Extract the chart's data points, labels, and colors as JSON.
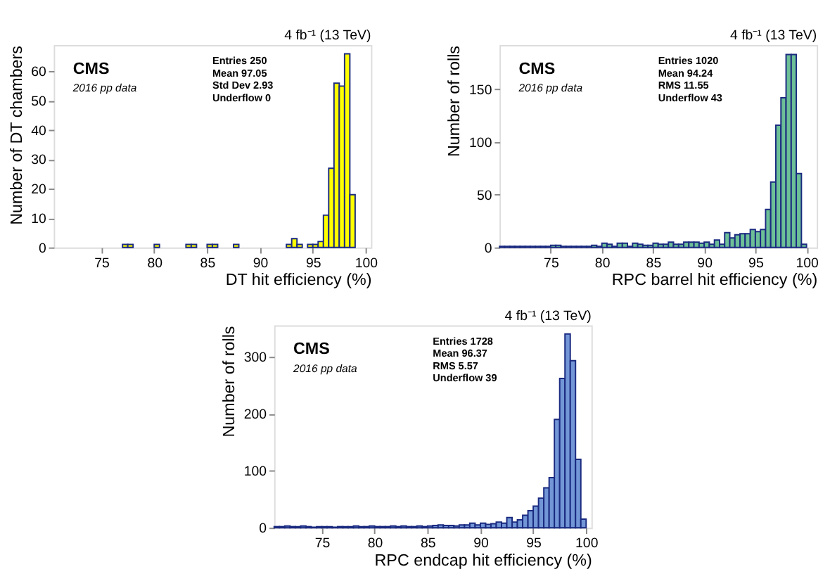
{
  "chart_data": [
    {
      "type": "histogram",
      "xlabel": "DT hit efficiency (%)",
      "ylabel": "Number of DT chambers",
      "color": "#ffff00",
      "grid": false,
      "xlim": [
        70.5,
        100.5
      ],
      "ylim": [
        0,
        69
      ],
      "xticks": [
        75,
        80,
        85,
        90,
        95,
        100
      ],
      "yticks": [
        0,
        10,
        20,
        30,
        40,
        50,
        60
      ],
      "bins": [
        70.5,
        71,
        71.5,
        72,
        72.5,
        73,
        73.5,
        74,
        74.5,
        75,
        75.5,
        76,
        76.5,
        77,
        77.5,
        78,
        78.5,
        79,
        79.5,
        80,
        80.5,
        81,
        81.5,
        82,
        82.5,
        83,
        83.5,
        84,
        84.5,
        85,
        85.5,
        86,
        86.5,
        87,
        87.5,
        88,
        88.5,
        89,
        89.5,
        90,
        90.5,
        91,
        91.5,
        92,
        92.5,
        93,
        93.5,
        94,
        94.5,
        95,
        95.5,
        96,
        96.5,
        97,
        97.5,
        98,
        98.5,
        99,
        99.5,
        100
      ],
      "values": [
        0,
        0,
        0,
        0,
        0,
        0,
        0,
        0,
        0,
        0,
        0,
        0,
        0,
        1,
        1,
        0,
        0,
        0,
        0,
        1,
        0,
        0,
        0,
        0,
        0,
        1,
        1,
        0,
        0,
        1,
        1,
        0,
        0,
        0,
        1,
        0,
        0,
        0,
        0,
        0,
        0,
        0,
        0,
        0,
        1,
        3,
        1,
        0,
        1,
        1,
        2,
        11,
        27,
        56,
        55,
        66,
        18,
        0,
        0
      ],
      "annotations": [
        "4 fb⁻¹ (13 TeV)",
        "CMS",
        "2016 pp data",
        "Entries 250",
        "Mean 97.05",
        "Std Dev 2.93",
        "Underflow 0"
      ]
    },
    {
      "type": "histogram",
      "xlabel": "RPC barrel hit efficiency (%)",
      "ylabel": "Number of rolls",
      "color": "#6dbf97",
      "grid": false,
      "xlim": [
        70,
        101
      ],
      "ylim": [
        0,
        192
      ],
      "xticks": [
        75,
        80,
        85,
        90,
        95,
        100
      ],
      "yticks": [
        0,
        50,
        100,
        150
      ],
      "bins": [
        70,
        70.5,
        71,
        71.5,
        72,
        72.5,
        73,
        73.5,
        74,
        74.5,
        75,
        75.5,
        76,
        76.5,
        77,
        77.5,
        78,
        78.5,
        79,
        79.5,
        80,
        80.5,
        81,
        81.5,
        82,
        82.5,
        83,
        83.5,
        84,
        84.5,
        85,
        85.5,
        86,
        86.5,
        87,
        87.5,
        88,
        88.5,
        89,
        89.5,
        90,
        90.5,
        91,
        91.5,
        92,
        92.5,
        93,
        93.5,
        94,
        94.5,
        95,
        95.5,
        96,
        96.5,
        97,
        97.5,
        98,
        98.5,
        99,
        99.5,
        100
      ],
      "values": [
        1,
        1,
        1,
        1,
        1,
        1,
        1,
        1,
        1,
        1,
        2,
        2,
        1,
        1,
        1,
        1,
        1,
        1,
        2,
        1,
        4,
        3,
        1,
        4,
        4,
        1,
        4,
        3,
        2,
        2,
        4,
        3,
        3,
        5,
        3,
        3,
        5,
        5,
        5,
        4,
        5,
        3,
        7,
        3,
        14,
        9,
        12,
        13,
        13,
        17,
        15,
        17,
        36,
        62,
        116,
        142,
        183,
        183,
        70,
        3
      ],
      "annotations": [
        "4 fb⁻¹ (13 TeV)",
        "CMS",
        "2016 pp data",
        "Entries 1020",
        "Mean 94.24",
        "RMS 11.55",
        "Underflow 43"
      ]
    },
    {
      "type": "histogram",
      "xlabel": "RPC endcap hit efficiency (%)",
      "ylabel": "Number of rolls",
      "color": "#7396d6",
      "grid": false,
      "xlim": [
        70.5,
        100.5
      ],
      "ylim": [
        0,
        355
      ],
      "xticks": [
        75,
        80,
        85,
        90,
        95,
        100
      ],
      "yticks": [
        0,
        100,
        200,
        300
      ],
      "bins": [
        70.5,
        71,
        71.5,
        72,
        72.5,
        73,
        73.5,
        74,
        74.5,
        75,
        75.5,
        76,
        76.5,
        77,
        77.5,
        78,
        78.5,
        79,
        79.5,
        80,
        80.5,
        81,
        81.5,
        82,
        82.5,
        83,
        83.5,
        84,
        84.5,
        85,
        85.5,
        86,
        86.5,
        87,
        87.5,
        88,
        88.5,
        89,
        89.5,
        90,
        90.5,
        91,
        91.5,
        92,
        92.5,
        93,
        93.5,
        94,
        94.5,
        95,
        95.5,
        96,
        96.5,
        97,
        97.5,
        98,
        98.5,
        99,
        99.5,
        100
      ],
      "values": [
        2,
        2,
        3,
        2,
        2,
        3,
        2,
        1,
        2,
        2,
        2,
        1,
        2,
        2,
        2,
        3,
        2,
        2,
        3,
        2,
        2,
        2,
        3,
        2,
        3,
        2,
        2,
        3,
        2,
        3,
        4,
        5,
        4,
        4,
        3,
        5,
        5,
        8,
        5,
        8,
        6,
        7,
        10,
        8,
        18,
        10,
        14,
        22,
        30,
        38,
        52,
        70,
        88,
        190,
        262,
        340,
        293,
        120,
        15
      ],
      "annotations": [
        "4 fb⁻¹ (13 TeV)",
        "CMS",
        "2016 pp data",
        "Entries 1728",
        "Mean 96.37",
        "RMS 5.57",
        "Underflow 39"
      ]
    }
  ]
}
